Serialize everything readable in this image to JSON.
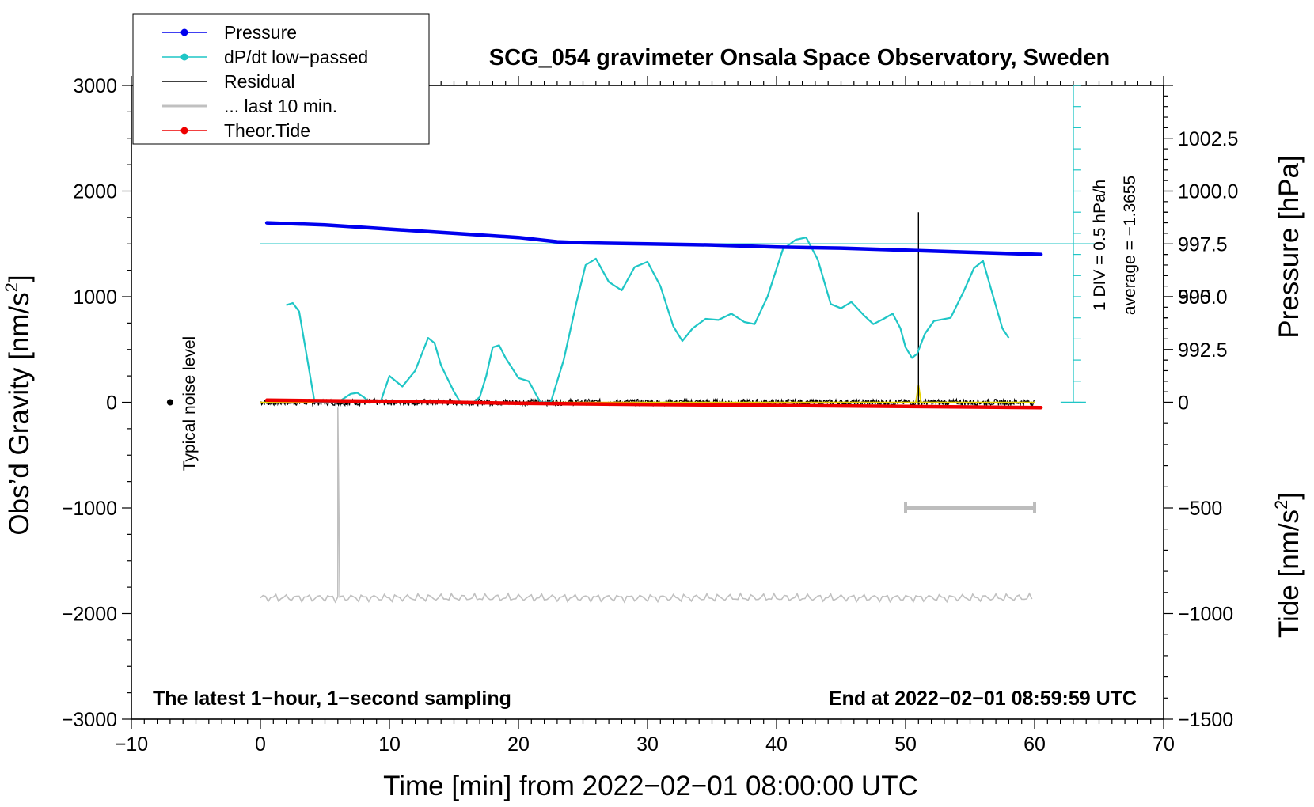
{
  "chart_data": {
    "type": "line",
    "title": "SCG_054 gravimeter Onsala Space Observatory, Sweden",
    "xlabel": "Time [min] from 2022−02−01 08:00:00 UTC",
    "ylabel_left": "Obs’d Gravity [nm/s",
    "ylabel_left_sup": "2",
    "ylabel_left_end": "]",
    "ylabel_right_top": "Pressure [hPa]",
    "ylabel_right_bottom": "Tide [nm/s",
    "ylabel_right_bottom_sup": "2",
    "ylabel_right_bottom_end": "]",
    "xlim": [
      -10,
      70
    ],
    "ylim": [
      -3000,
      3000
    ],
    "pressure_lim": [
      990.0,
      1005.0
    ],
    "tide_lim": [
      -1500,
      1500
    ],
    "x_ticks": [
      "−10",
      "0",
      "10",
      "20",
      "30",
      "40",
      "50",
      "60",
      "70"
    ],
    "x_tick_values": [
      -10,
      0,
      10,
      20,
      30,
      40,
      50,
      60,
      70
    ],
    "y_ticks": [
      "3000",
      "2000",
      "1000",
      "0",
      "−1000",
      "−2000",
      "−3000"
    ],
    "y_tick_values": [
      3000,
      2000,
      1000,
      0,
      -1000,
      -2000,
      -3000
    ],
    "pressure_ticks": [
      "1002.5",
      "1000.0",
      "997.5",
      "995.0",
      "992.5"
    ],
    "pressure_tick_values": [
      1002.5,
      1000.0,
      997.5,
      995.0,
      992.5
    ],
    "tide_ticks": [
      "1000",
      "500",
      "0",
      "−500",
      "−1000",
      "−1500"
    ],
    "tide_tick_values": [
      1000,
      500,
      0,
      -500,
      -1000,
      -1500
    ],
    "legend": [
      {
        "name": "Pressure",
        "color": "#0000ee",
        "marker": true
      },
      {
        "name": "dP/dt low−passed",
        "color": "#1fc6c6",
        "marker": true
      },
      {
        "name": "Residual",
        "color": "#000000",
        "marker": false
      },
      {
        "name": "... last 10 min.",
        "color": "#c0c0c0",
        "marker": false
      },
      {
        "name": "Theor.Tide",
        "color": "#ee0000",
        "marker": true
      }
    ],
    "annotations": {
      "noise_label": "Typical noise level",
      "div_label": "1 DIV = 0.5 hPa/h",
      "average_label": "average = −1.3655",
      "bottom_left": "The latest 1−hour, 1−second sampling",
      "bottom_right": "End at 2022−02−01 08:59:59 UTC"
    },
    "series": [
      {
        "name": "Pressure",
        "axis": "pressure",
        "color": "#0000ee",
        "x": [
          0.5,
          5,
          10,
          15,
          20,
          23,
          25,
          30,
          35,
          40,
          45,
          50,
          55,
          60.5
        ],
        "y": [
          998.5,
          998.4,
          998.2,
          998.0,
          997.8,
          997.6,
          997.55,
          997.5,
          997.45,
          997.35,
          997.3,
          997.2,
          997.1,
          997.0
        ]
      },
      {
        "name": "dP/dt low-passed",
        "axis": "left",
        "color": "#1fc6c6",
        "x": [
          2,
          2.5,
          3,
          3.5,
          4.2,
          5,
          6,
          7,
          7.5,
          8,
          8.5,
          9.3,
          10,
          11,
          12,
          13,
          13.5,
          14,
          15,
          15.5,
          16,
          16.5,
          17,
          17.5,
          18,
          18.5,
          19,
          20,
          20.8,
          21.7,
          22.5,
          23.5,
          24.5,
          25.2,
          26,
          27,
          28,
          29,
          30,
          31,
          32,
          32.7,
          33.5,
          34.5,
          35.5,
          36.5,
          37.5,
          38.3,
          39.3,
          40.5,
          41.5,
          42.3,
          43.2,
          44.2,
          45,
          45.8,
          46.8,
          47.5,
          48.3,
          49,
          49.6,
          50,
          50.5,
          50.9,
          51.5,
          52.2,
          53.5,
          54.5,
          55.3,
          56,
          56.8,
          57.5,
          58
        ],
        "y": [
          920,
          940,
          860,
          500,
          0,
          -200,
          -100,
          80,
          90,
          50,
          0,
          -50,
          250,
          150,
          300,
          610,
          560,
          350,
          100,
          0,
          -200,
          -50,
          50,
          250,
          520,
          540,
          420,
          230,
          200,
          0,
          -100,
          400,
          950,
          1300,
          1360,
          1140,
          1060,
          1280,
          1330,
          1100,
          720,
          580,
          700,
          790,
          780,
          840,
          760,
          740,
          1000,
          1450,
          1540,
          1560,
          1350,
          930,
          890,
          950,
          820,
          740,
          790,
          840,
          700,
          520,
          420,
          460,
          650,
          770,
          800,
          1050,
          1270,
          1340,
          1000,
          700,
          610
        ]
      },
      {
        "name": "Residual",
        "axis": "left",
        "color": "#000000",
        "x": [
          0,
          60
        ],
        "y": [
          0,
          0
        ]
      },
      {
        "name": "... last 10 min.",
        "axis": "left",
        "color": "#c0c0c0",
        "x": [
          0,
          60
        ],
        "y": [
          -1850,
          -1850
        ],
        "spike_x": 6,
        "spike_y": -50
      },
      {
        "name": "Theor.Tide",
        "axis": "tide",
        "color": "#ee0000",
        "x": [
          0.5,
          10,
          20,
          30,
          40,
          50,
          60.5
        ],
        "y": [
          10,
          5,
          -5,
          -10,
          -15,
          -20,
          -25
        ]
      }
    ],
    "event_line": {
      "x": 51,
      "y_top": 1800,
      "y_bottom": 0
    },
    "pressure_ref_line": 997.5,
    "noise_bar": {
      "x": -7,
      "y": 0
    },
    "scale_bar_10min": {
      "x0": 50,
      "x1": 60,
      "y": -1000
    }
  }
}
